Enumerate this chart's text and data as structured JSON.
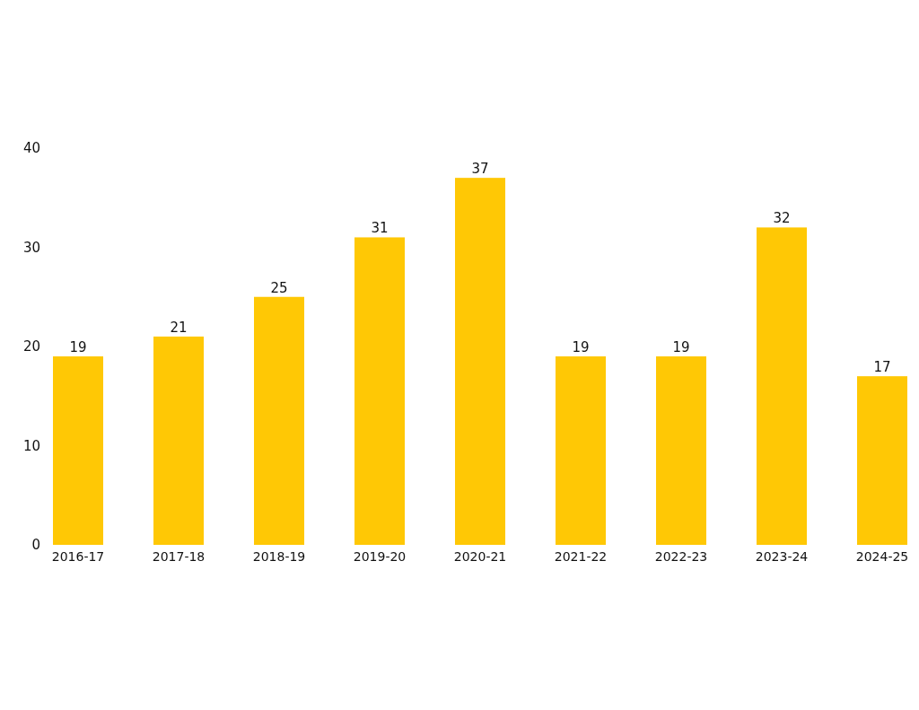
{
  "chart_data": {
    "type": "bar",
    "categories": [
      "2016-17",
      "2017-18",
      "2018-19",
      "2019-20",
      "2020-21",
      "2021-22",
      "2022-23",
      "2023-24",
      "2024-25"
    ],
    "values": [
      19,
      21,
      25,
      31,
      37,
      19,
      19,
      32,
      17
    ],
    "color": "#ffc805",
    "ylim": [
      0,
      40
    ],
    "yticks": [
      0,
      10,
      20,
      30,
      40
    ],
    "data_labels": true
  }
}
